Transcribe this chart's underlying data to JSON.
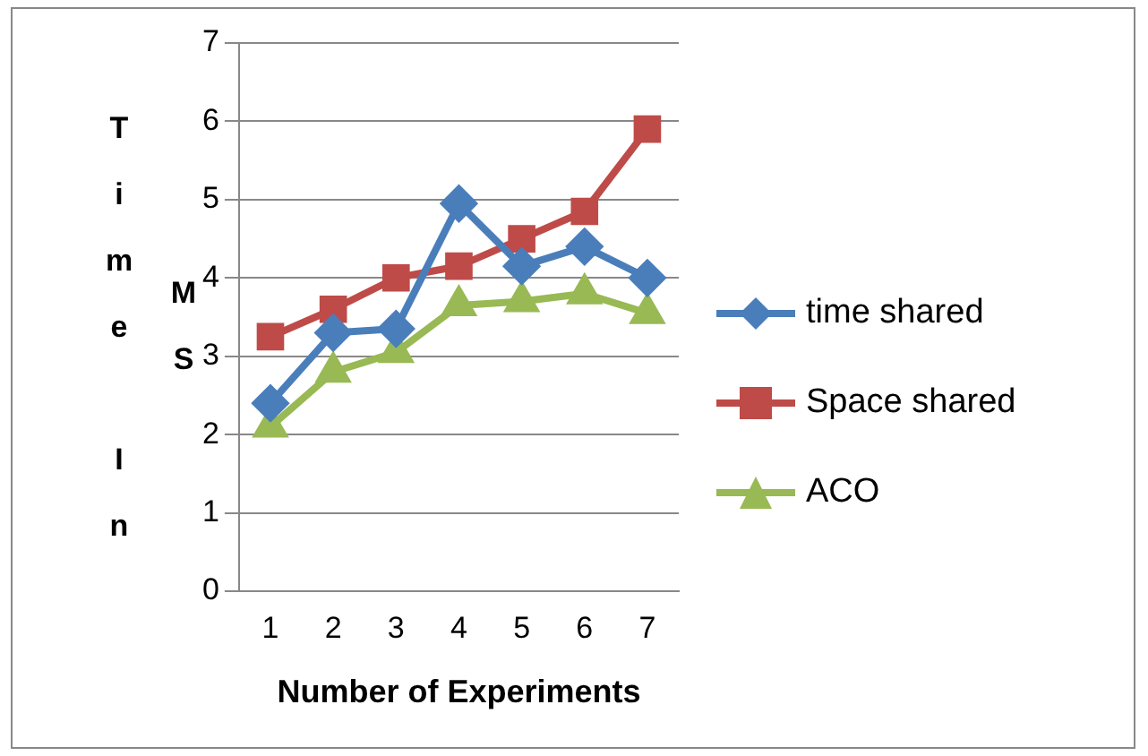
{
  "chart_data": {
    "type": "line",
    "xlabel": "Number of Experiments",
    "ylabel": "Time In MS",
    "categories": [
      "1",
      "2",
      "3",
      "4",
      "5",
      "6",
      "7"
    ],
    "series": [
      {
        "name": "time shared",
        "color": "#4a7ebb",
        "marker": "diamond",
        "values": [
          2.4,
          3.3,
          3.35,
          4.95,
          4.15,
          4.4,
          4.0
        ]
      },
      {
        "name": "Space shared",
        "color": "#be4b48",
        "marker": "square",
        "values": [
          3.25,
          3.6,
          4.0,
          4.15,
          4.5,
          4.85,
          5.9
        ]
      },
      {
        "name": "ACO",
        "color": "#98b954",
        "marker": "triangle",
        "values": [
          2.1,
          2.8,
          3.05,
          3.65,
          3.7,
          3.8,
          3.55
        ]
      }
    ],
    "ylim": [
      0,
      7
    ],
    "yticks": [
      0,
      1,
      2,
      3,
      4,
      5,
      6,
      7
    ],
    "grid": "y",
    "legend": "right",
    "line_style": "solid"
  }
}
